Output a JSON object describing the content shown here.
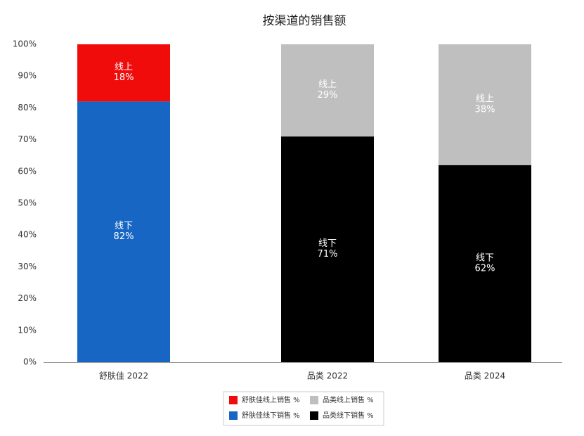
{
  "chart_data": {
    "type": "stacked_bar",
    "title": "按渠道的销售额",
    "categories": [
      "舒肤佳 2022",
      "品类 2022",
      "品类 2024"
    ],
    "series": [
      {
        "name": "舒肤佳线上销售 %",
        "color": "#f10c0c",
        "segment_label": "线上",
        "values": [
          18,
          null,
          null
        ],
        "value_labels": [
          "18%",
          null,
          null
        ]
      },
      {
        "name": "舒肤佳线下销售 %",
        "color": "#1766c4",
        "segment_label": "线下",
        "values": [
          82,
          null,
          null
        ],
        "value_labels": [
          "82%",
          null,
          null
        ]
      },
      {
        "name": "品类线上销售 %",
        "color": "#bfbfbf",
        "segment_label": "线上",
        "values": [
          null,
          29,
          38
        ],
        "value_labels": [
          null,
          "29%",
          "38%"
        ]
      },
      {
        "name": "品类线下销售 %",
        "color": "#000000",
        "segment_label": "线下",
        "values": [
          null,
          71,
          62
        ],
        "value_labels": [
          null,
          "71%",
          "62%"
        ]
      }
    ],
    "ylim": [
      0,
      100
    ],
    "yticks": [
      {
        "value": 0,
        "label": "0%"
      },
      {
        "value": 10,
        "label": "10%"
      },
      {
        "value": 20,
        "label": "20%"
      },
      {
        "value": 30,
        "label": "30%"
      },
      {
        "value": 40,
        "label": "40%"
      },
      {
        "value": 50,
        "label": "50%"
      },
      {
        "value": 60,
        "label": "60%"
      },
      {
        "value": 70,
        "label": "70%"
      },
      {
        "value": 80,
        "label": "80%"
      },
      {
        "value": 90,
        "label": "90%"
      },
      {
        "value": 100,
        "label": "100%"
      }
    ],
    "grid": false,
    "legend": "bottom"
  }
}
